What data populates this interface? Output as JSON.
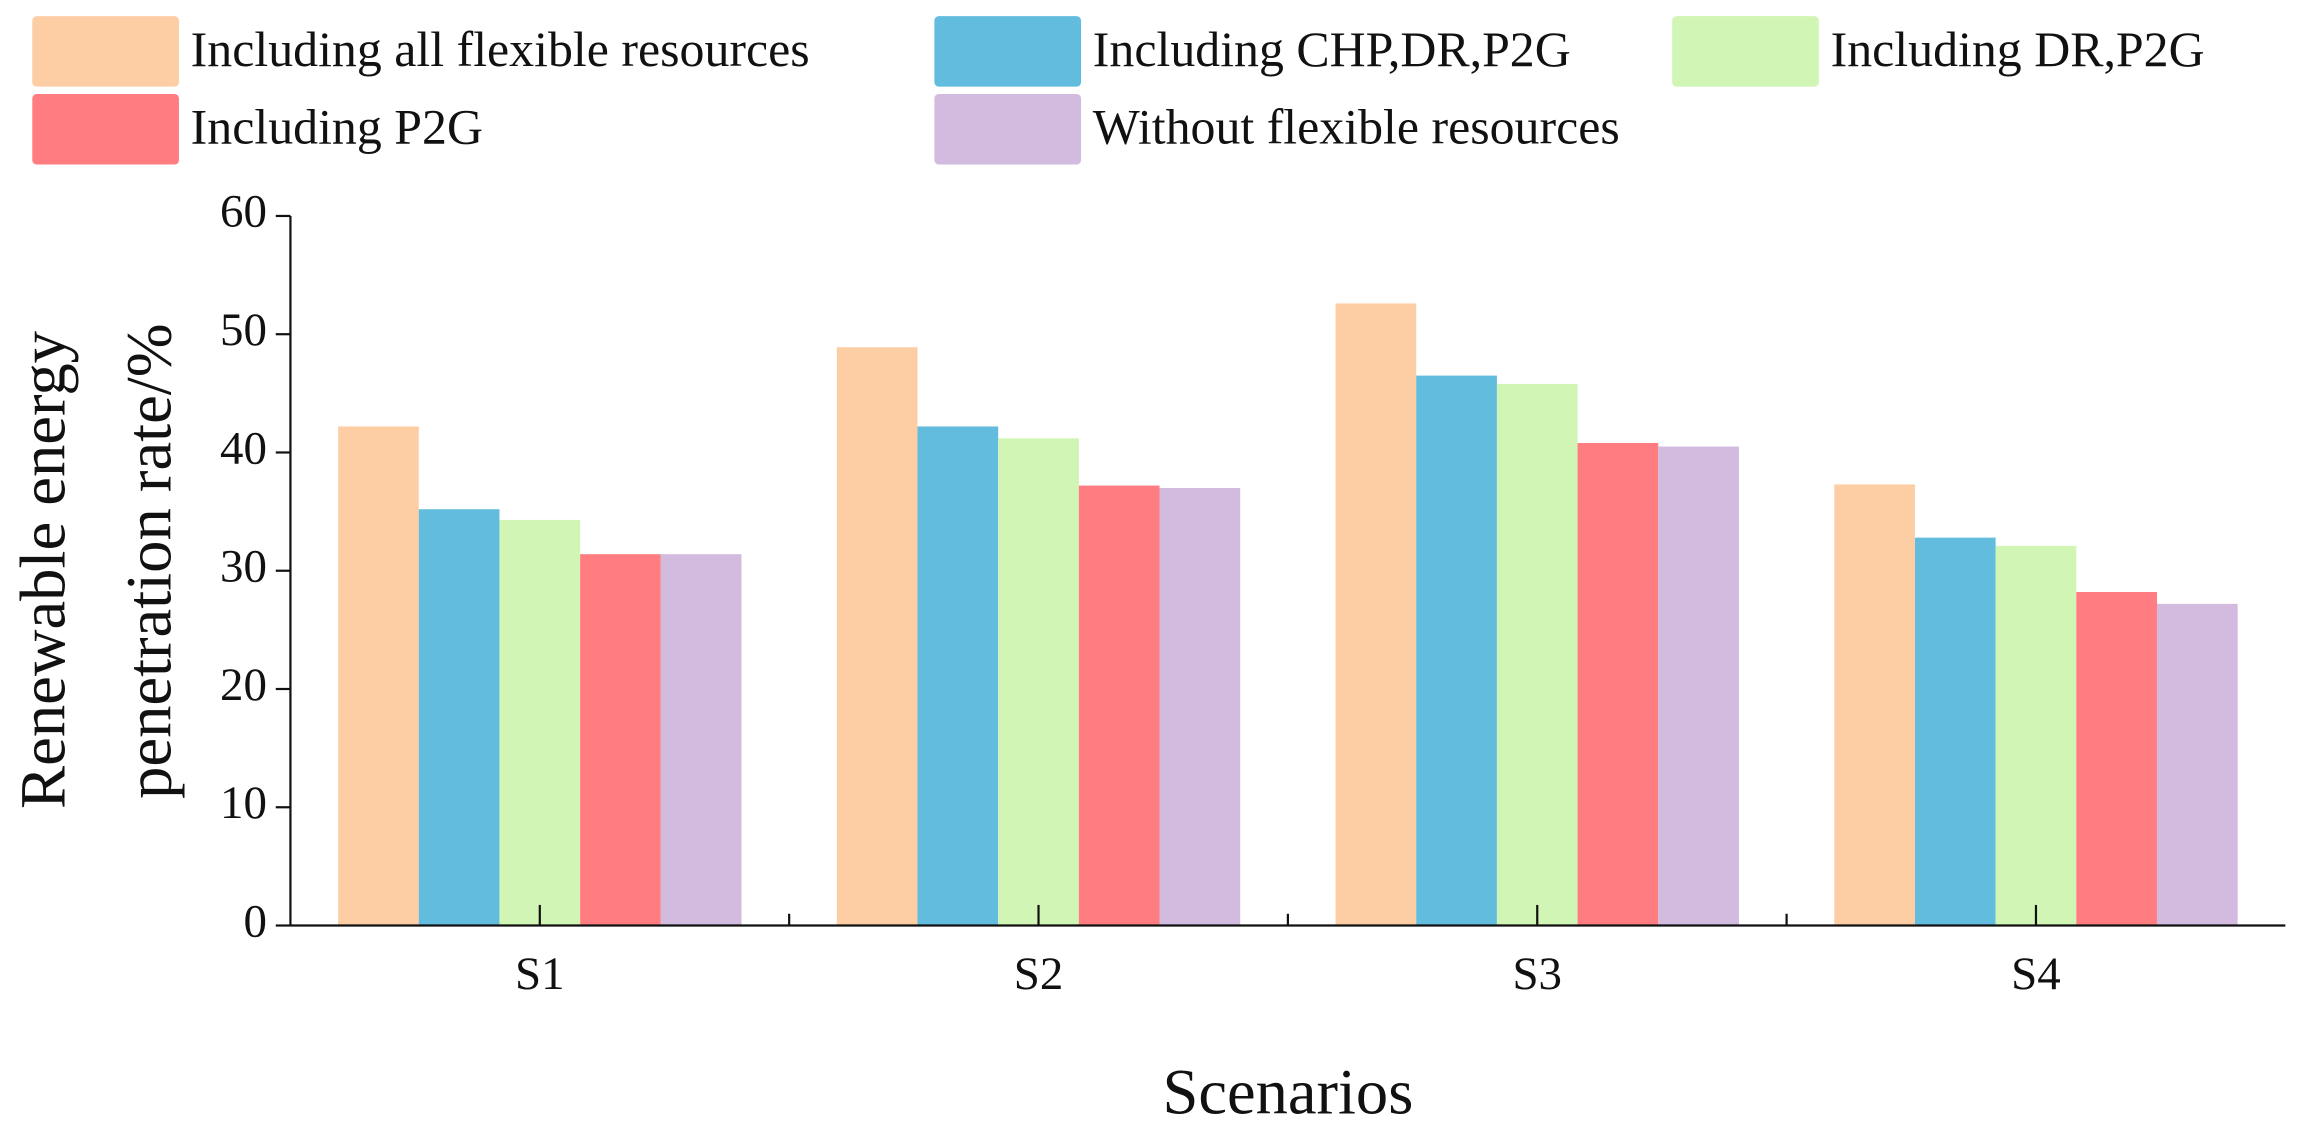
{
  "chart_data": {
    "type": "bar",
    "x_label": "Scenarios",
    "y_label": [
      "Renewable energy",
      "penetration rate/%"
    ],
    "categories": [
      "S1",
      "S2",
      "S3",
      "S4"
    ],
    "series": [
      {
        "name": "Including all flexible resources",
        "color": "#fdcda4",
        "values": [
          42.2,
          48.9,
          52.6,
          37.3
        ]
      },
      {
        "name": "Including CHP,DR,P2G",
        "color": "#62bcdd",
        "values": [
          35.2,
          42.2,
          46.5,
          32.8
        ]
      },
      {
        "name": "Including DR,P2G",
        "color": "#d0f5b4",
        "values": [
          34.3,
          41.2,
          45.8,
          32.1
        ]
      },
      {
        "name": "Including P2G",
        "color": "#ff7d81",
        "values": [
          31.4,
          37.2,
          40.8,
          28.2
        ]
      },
      {
        "name": "Without flexible resources",
        "color": "#d2bbdf",
        "values": [
          31.4,
          37.0,
          40.5,
          27.2
        ]
      }
    ],
    "ylim": [
      0,
      60
    ],
    "yticks": [
      0,
      10,
      20,
      30,
      40,
      50,
      60
    ]
  }
}
